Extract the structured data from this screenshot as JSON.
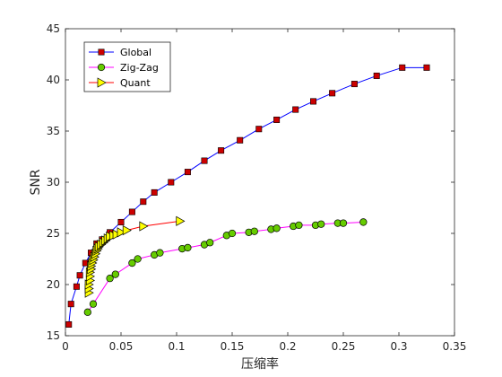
{
  "chart_data": {
    "type": "line",
    "xlabel": "压缩率",
    "ylabel": "SNR",
    "xlim": [
      0,
      0.35
    ],
    "ylim": [
      15,
      45
    ],
    "xticks": [
      0,
      0.05,
      0.1,
      0.15,
      0.2,
      0.25,
      0.3,
      0.35
    ],
    "xtick_labels": [
      "0",
      "0.05",
      "0.1",
      "0.15",
      "0.2",
      "0.25",
      "0.3",
      "0.35"
    ],
    "yticks": [
      15,
      20,
      25,
      30,
      35,
      40,
      45
    ],
    "ytick_labels": [
      "15",
      "20",
      "25",
      "30",
      "35",
      "40",
      "45"
    ],
    "grid": false,
    "legend_position": "top-left",
    "series": [
      {
        "name": "Global",
        "color": "#0000ff",
        "marker": "square",
        "marker_fill": "#cc0000",
        "x": [
          0.003,
          0.005,
          0.01,
          0.013,
          0.018,
          0.023,
          0.028,
          0.033,
          0.04,
          0.05,
          0.06,
          0.07,
          0.08,
          0.095,
          0.11,
          0.125,
          0.14,
          0.157,
          0.174,
          0.19,
          0.207,
          0.223,
          0.24,
          0.26,
          0.28,
          0.303,
          0.325
        ],
        "y": [
          16.1,
          18.1,
          19.8,
          20.9,
          22.1,
          23.1,
          24.0,
          24.4,
          25.1,
          26.1,
          27.1,
          28.1,
          29.0,
          30.0,
          31.0,
          32.1,
          33.1,
          34.1,
          35.2,
          36.1,
          37.1,
          37.9,
          38.7,
          39.6,
          40.4,
          41.2,
          41.2
        ]
      },
      {
        "name": "Zig-Zag",
        "color": "#ff00ff",
        "marker": "circle",
        "marker_fill": "#66cc00",
        "x": [
          0.02,
          0.025,
          0.04,
          0.045,
          0.06,
          0.065,
          0.08,
          0.085,
          0.105,
          0.11,
          0.125,
          0.13,
          0.145,
          0.15,
          0.165,
          0.17,
          0.185,
          0.19,
          0.205,
          0.21,
          0.225,
          0.23,
          0.245,
          0.25,
          0.268
        ],
        "y": [
          17.3,
          18.1,
          20.6,
          21.0,
          22.1,
          22.5,
          22.9,
          23.1,
          23.5,
          23.6,
          23.9,
          24.1,
          24.8,
          25.0,
          25.1,
          25.2,
          25.4,
          25.5,
          25.7,
          25.8,
          25.8,
          25.9,
          26.0,
          26.0,
          26.1
        ]
      },
      {
        "name": "Quant",
        "color": "#ff0000",
        "marker": "triangle-right",
        "marker_fill": "#ffff00",
        "x": [
          0.021,
          0.021,
          0.021,
          0.022,
          0.022,
          0.022,
          0.023,
          0.023,
          0.024,
          0.025,
          0.026,
          0.027,
          0.028,
          0.029,
          0.03,
          0.032,
          0.034,
          0.036,
          0.038,
          0.04,
          0.043,
          0.046,
          0.05,
          0.055,
          0.07,
          0.103
        ],
        "y": [
          19.2,
          19.6,
          20.0,
          20.4,
          20.8,
          21.2,
          21.5,
          21.8,
          22.1,
          22.4,
          22.7,
          23.0,
          23.3,
          23.5,
          23.7,
          23.9,
          24.1,
          24.3,
          24.5,
          24.7,
          24.8,
          24.9,
          25.1,
          25.3,
          25.7,
          26.2
        ]
      }
    ]
  }
}
